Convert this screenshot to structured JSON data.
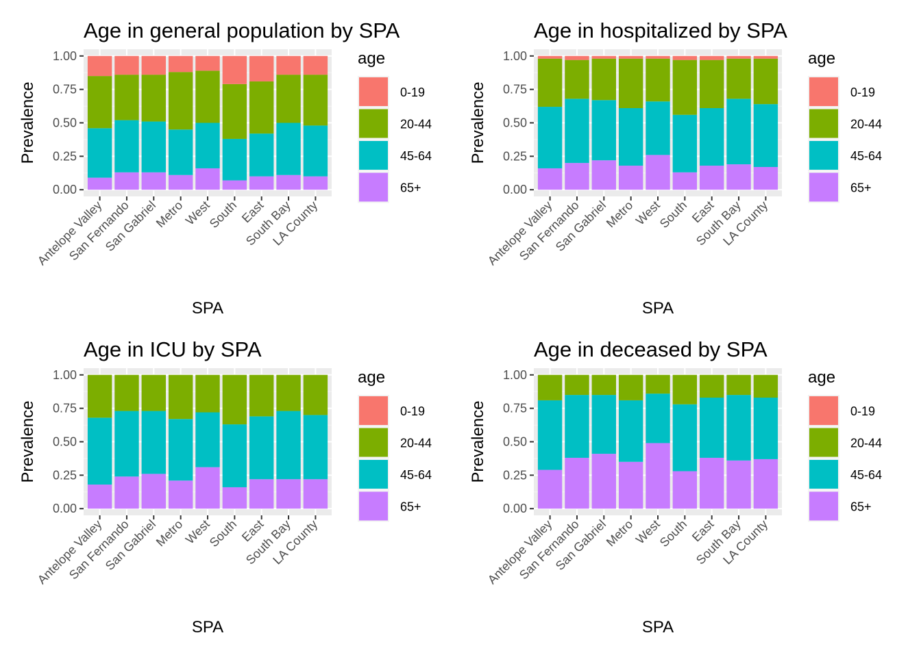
{
  "chart_data": [
    {
      "type": "bar",
      "stacked": true,
      "title": "Age in general population by SPA",
      "xlabel": "SPA",
      "ylabel": "Prevalence",
      "ylim": [
        0,
        1
      ],
      "yticks": [
        "0.00",
        "0.25",
        "0.50",
        "0.75",
        "1.00"
      ],
      "grid": true,
      "legend": {
        "title": "age",
        "position": "right"
      },
      "categories": [
        "Antelope Valley",
        "San Fernando",
        "San Gabriel",
        "Metro",
        "West",
        "South",
        "East",
        "South Bay",
        "LA County"
      ],
      "series": [
        {
          "name": "0-19",
          "color": "#F8766D",
          "values": [
            0.15,
            0.14,
            0.14,
            0.12,
            0.11,
            0.21,
            0.19,
            0.14,
            0.14
          ]
        },
        {
          "name": "20-44",
          "color": "#7CAE00",
          "values": [
            0.39,
            0.34,
            0.35,
            0.43,
            0.39,
            0.41,
            0.39,
            0.36,
            0.38
          ]
        },
        {
          "name": "45-64",
          "color": "#00BFC4",
          "values": [
            0.37,
            0.39,
            0.38,
            0.34,
            0.34,
            0.31,
            0.32,
            0.39,
            0.38
          ]
        },
        {
          "name": "65+",
          "color": "#C77CFF",
          "values": [
            0.09,
            0.13,
            0.13,
            0.11,
            0.16,
            0.07,
            0.1,
            0.11,
            0.1
          ]
        }
      ]
    },
    {
      "type": "bar",
      "stacked": true,
      "title": "Age in hospitalized by SPA",
      "xlabel": "SPA",
      "ylabel": "Prevalence",
      "ylim": [
        0,
        1
      ],
      "yticks": [
        "0.00",
        "0.25",
        "0.50",
        "0.75",
        "1.00"
      ],
      "grid": true,
      "legend": {
        "title": "age",
        "position": "right"
      },
      "categories": [
        "Antelope Valley",
        "San Fernando",
        "San Gabriel",
        "Metro",
        "West",
        "South",
        "East",
        "South Bay",
        "LA County"
      ],
      "series": [
        {
          "name": "0-19",
          "color": "#F8766D",
          "values": [
            0.02,
            0.03,
            0.02,
            0.02,
            0.02,
            0.03,
            0.03,
            0.02,
            0.02
          ]
        },
        {
          "name": "20-44",
          "color": "#7CAE00",
          "values": [
            0.36,
            0.29,
            0.31,
            0.37,
            0.32,
            0.41,
            0.36,
            0.3,
            0.34
          ]
        },
        {
          "name": "45-64",
          "color": "#00BFC4",
          "values": [
            0.46,
            0.48,
            0.45,
            0.43,
            0.4,
            0.43,
            0.43,
            0.49,
            0.47
          ]
        },
        {
          "name": "65+",
          "color": "#C77CFF",
          "values": [
            0.16,
            0.2,
            0.22,
            0.18,
            0.26,
            0.13,
            0.18,
            0.19,
            0.17
          ]
        }
      ]
    },
    {
      "type": "bar",
      "stacked": true,
      "title": "Age in ICU by SPA",
      "xlabel": "SPA",
      "ylabel": "Prevalence",
      "ylim": [
        0,
        1
      ],
      "yticks": [
        "0.00",
        "0.25",
        "0.50",
        "0.75",
        "1.00"
      ],
      "grid": true,
      "legend": {
        "title": "age",
        "position": "right"
      },
      "categories": [
        "Antelope Valley",
        "San Fernando",
        "San Gabriel",
        "Metro",
        "West",
        "South",
        "East",
        "South Bay",
        "LA County"
      ],
      "series": [
        {
          "name": "0-19",
          "color": "#F8766D",
          "values": [
            0,
            0,
            0,
            0,
            0,
            0,
            0,
            0,
            0
          ]
        },
        {
          "name": "20-44",
          "color": "#7CAE00",
          "values": [
            0.32,
            0.27,
            0.27,
            0.33,
            0.28,
            0.37,
            0.31,
            0.27,
            0.3
          ]
        },
        {
          "name": "45-64",
          "color": "#00BFC4",
          "values": [
            0.5,
            0.49,
            0.47,
            0.46,
            0.41,
            0.47,
            0.47,
            0.51,
            0.48
          ]
        },
        {
          "name": "65+",
          "color": "#C77CFF",
          "values": [
            0.18,
            0.24,
            0.26,
            0.21,
            0.31,
            0.16,
            0.22,
            0.22,
            0.22
          ]
        }
      ]
    },
    {
      "type": "bar",
      "stacked": true,
      "title": "Age in deceased by SPA",
      "xlabel": "SPA",
      "ylabel": "Prevalence",
      "ylim": [
        0,
        1
      ],
      "yticks": [
        "0.00",
        "0.25",
        "0.50",
        "0.75",
        "1.00"
      ],
      "grid": true,
      "legend": {
        "title": "age",
        "position": "right"
      },
      "categories": [
        "Antelope Valley",
        "San Fernando",
        "San Gabriel",
        "Metro",
        "West",
        "South",
        "East",
        "South Bay",
        "LA County"
      ],
      "series": [
        {
          "name": "0-19",
          "color": "#F8766D",
          "values": [
            0,
            0,
            0,
            0,
            0,
            0,
            0,
            0,
            0
          ]
        },
        {
          "name": "20-44",
          "color": "#7CAE00",
          "values": [
            0.19,
            0.15,
            0.15,
            0.19,
            0.14,
            0.22,
            0.17,
            0.15,
            0.17
          ]
        },
        {
          "name": "45-64",
          "color": "#00BFC4",
          "values": [
            0.52,
            0.47,
            0.44,
            0.46,
            0.37,
            0.5,
            0.45,
            0.49,
            0.46
          ]
        },
        {
          "name": "65+",
          "color": "#C77CFF",
          "values": [
            0.29,
            0.38,
            0.41,
            0.35,
            0.49,
            0.28,
            0.38,
            0.36,
            0.37
          ]
        }
      ]
    }
  ]
}
